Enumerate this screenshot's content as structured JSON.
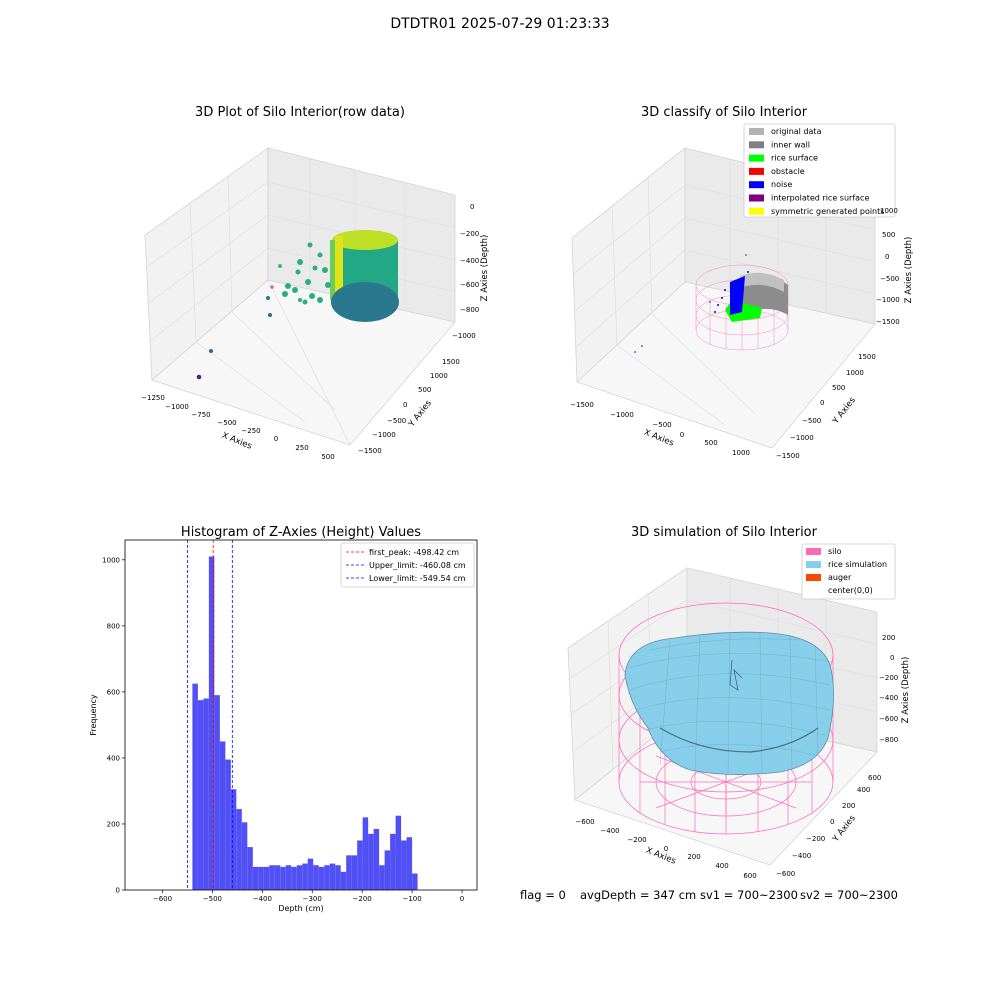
{
  "figure": {
    "suptitle": "DTDTR01 2025-07-29 01:23:33"
  },
  "panels": {
    "raw": {
      "title": "3D Plot of Silo Interior(row data)",
      "xlabel": "X Axies",
      "ylabel": "Y Axies",
      "zlabel": "Z Axies (Depth)",
      "xticks": [
        "−1250",
        "−1000",
        "−750",
        "−500",
        "−250",
        "0",
        "250",
        "500"
      ],
      "yticks": [
        "−1500",
        "−1000",
        "−500",
        "0",
        "500",
        "1000",
        "1500"
      ],
      "zticks": [
        "0",
        "−200",
        "−400",
        "−600",
        "−800",
        "−1000"
      ]
    },
    "classify": {
      "title": "3D classify of Silo Interior",
      "xlabel": "X Axies",
      "ylabel": "Y Axies",
      "zlabel": "Z Axies (Depth)",
      "xticks": [
        "−1500",
        "−1000",
        "−500",
        "0",
        "500",
        "1000"
      ],
      "yticks": [
        "−1500",
        "−1000",
        "−500",
        "0",
        "500",
        "1000",
        "1500"
      ],
      "zticks": [
        "1000",
        "500",
        "0",
        "−500",
        "−1000",
        "−1500"
      ],
      "legend": [
        {
          "label": "original data",
          "color": "#b3b3b3"
        },
        {
          "label": "inner wall",
          "color": "#808080"
        },
        {
          "label": "rice surface",
          "color": "#00ff00"
        },
        {
          "label": "obstacle",
          "color": "#ff0000"
        },
        {
          "label": "noise",
          "color": "#0000ff"
        },
        {
          "label": "interpolated rice surface",
          "color": "#800080"
        },
        {
          "label": "symmetric generated points",
          "color": "#ffff00"
        }
      ]
    },
    "simulation": {
      "title": "3D simulation of Silo Interior",
      "xlabel": "X Axies",
      "ylabel": "Y Axies",
      "zlabel": "Z Axies (Depth)",
      "xticks": [
        "−600",
        "−400",
        "−200",
        "0",
        "200",
        "400",
        "600"
      ],
      "yticks": [
        "−600",
        "−400",
        "−200",
        "0",
        "200",
        "400",
        "600"
      ],
      "zticks": [
        "200",
        "0",
        "−200",
        "−400",
        "−600",
        "−800"
      ],
      "legend": [
        {
          "label": "silo",
          "color": "#ff69b4"
        },
        {
          "label": "rice simulation",
          "color": "#87ceeb"
        },
        {
          "label": "auger",
          "color": "#ff4500"
        },
        {
          "label": "center(0,0)",
          "color": ""
        }
      ]
    }
  },
  "status": {
    "flag": "flag = 0",
    "avg_depth": "avgDepth = 347 cm",
    "sv1": "sv1 = 700~2300",
    "sv2": "sv2 = 700~2300"
  },
  "chart_data": {
    "type": "bar",
    "title": "Histogram of Z-Axies (Height) Values",
    "xlabel": "Depth (cm)",
    "ylabel": "Frequency",
    "xlim": [
      -675,
      30
    ],
    "ylim": [
      0,
      1060
    ],
    "xticks": [
      -600,
      -500,
      -400,
      -300,
      -200,
      -100,
      0
    ],
    "yticks": [
      0,
      200,
      400,
      600,
      800,
      1000
    ],
    "bin_start": -540,
    "bin_width": 11,
    "values": [
      625,
      575,
      580,
      1010,
      590,
      450,
      395,
      305,
      245,
      205,
      130,
      70,
      70,
      70,
      75,
      75,
      70,
      75,
      70,
      75,
      80,
      95,
      75,
      70,
      75,
      80,
      75,
      55,
      105,
      105,
      150,
      220,
      170,
      185,
      75,
      120,
      170,
      225,
      150,
      160,
      50
    ],
    "bar_color": "#5050f5",
    "vlines": [
      {
        "label": "first_peak: -498.42 cm",
        "x": -498.42,
        "color": "#ff0000"
      },
      {
        "label": "Upper_limit: -460.08 cm",
        "x": -460.08,
        "color": "#0000ff"
      },
      {
        "label": "Lower_limit: -549.54 cm",
        "x": -549.54,
        "color": "#0000ff"
      }
    ],
    "legend_position": "upper right"
  }
}
